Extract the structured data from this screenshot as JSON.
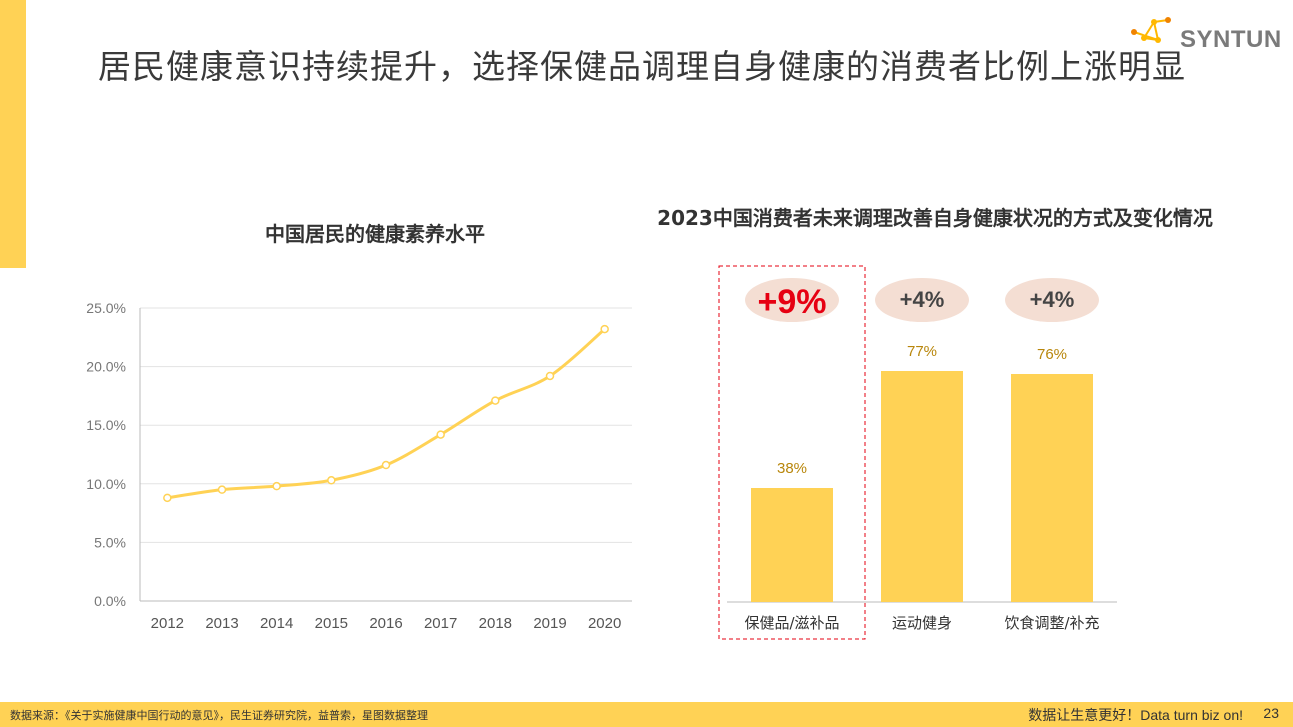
{
  "page": {
    "title": "居民健康意识持续提升，选择保健品调理自身健康的消费者比例上涨明显",
    "logo_text": "SYNTUN",
    "accent_color": "#FFD255"
  },
  "footer": {
    "source": "数据来源：《关于实施健康中国行动的意见》，民生证券研究院，益普索，星图数据整理",
    "slogan": "数据让生意更好！Data turn biz on!",
    "page_number": "23"
  },
  "chart_data": [
    {
      "type": "line",
      "title": "中国居民的健康素养水平",
      "x": [
        "2012",
        "2013",
        "2014",
        "2015",
        "2016",
        "2017",
        "2018",
        "2019",
        "2020"
      ],
      "values": [
        8.8,
        9.5,
        9.8,
        10.3,
        11.6,
        14.2,
        17.1,
        19.2,
        23.2
      ],
      "y_tick_labels": [
        "0.0%",
        "5.0%",
        "10.0%",
        "15.0%",
        "20.0%",
        "25.0%"
      ],
      "ylim": [
        0,
        25
      ],
      "grid": true,
      "line_color": "#FFD255"
    },
    {
      "type": "bar",
      "title": "2023中国消费者未来调理改善自身健康状况的方式及变化情况",
      "categories": [
        "保健品/滋补品",
        "运动健身",
        "饮食调整/补充"
      ],
      "values": [
        38,
        77,
        76
      ],
      "data_labels": [
        "38%",
        "77%",
        "76%"
      ],
      "changes": [
        "+9%",
        "+4%",
        "+4%"
      ],
      "highlight_index": 0,
      "ylim": [
        0,
        100
      ],
      "bar_color": "#FFD255",
      "label_color": "#B8860B",
      "badge_color": "#F4DED3",
      "highlight_text_color": "#E60012"
    }
  ]
}
